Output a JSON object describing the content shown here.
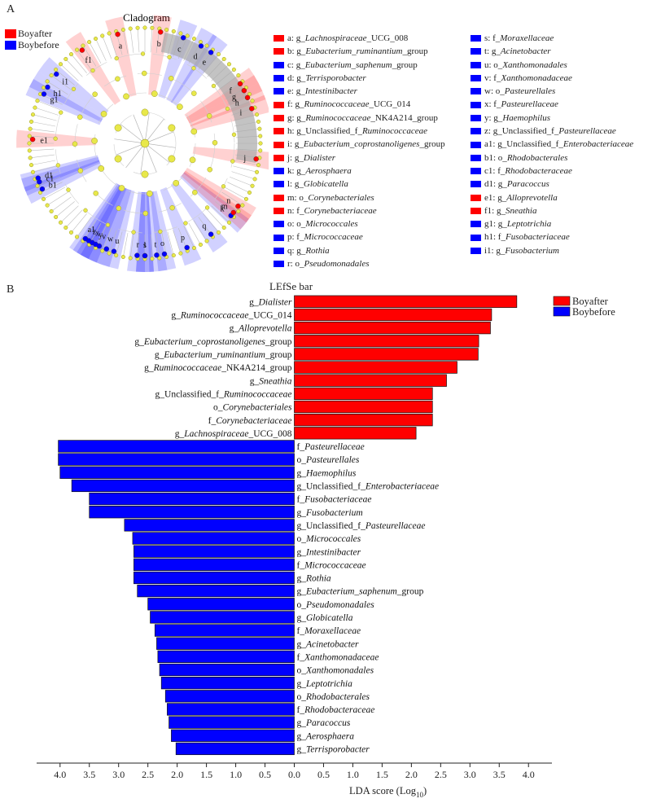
{
  "panel_a_label": "A",
  "panel_b_label": "B",
  "colors": {
    "boyafter": "#ff0000",
    "boybefore": "#0000ff",
    "node": "#e8e84a",
    "node_stroke": "#9a9a2a"
  },
  "cladogram": {
    "title": "Cladogram",
    "groups": [
      {
        "name": "Boyafter",
        "color": "#ff0000"
      },
      {
        "name": "Boybefore",
        "color": "#0000ff"
      }
    ],
    "outer_labels": [
      {
        "id": "a",
        "angle": 346,
        "group": "Boyafter"
      },
      {
        "id": "b",
        "angle": 8,
        "group": "Boyafter"
      },
      {
        "id": "c",
        "angle": 20,
        "group": "Boybefore"
      },
      {
        "id": "d",
        "angle": 30,
        "group": "Boybefore"
      },
      {
        "id": "e",
        "angle": 36,
        "group": "Boybefore"
      },
      {
        "id": "f",
        "angle": 58,
        "group": "Boyafter"
      },
      {
        "id": "g",
        "angle": 62,
        "group": "Boyafter"
      },
      {
        "id": "h",
        "angle": 66,
        "group": "Boyafter"
      },
      {
        "id": "i",
        "angle": 72,
        "group": "Boyafter"
      },
      {
        "id": "j",
        "angle": 98,
        "group": "Boyafter"
      },
      {
        "id": "k",
        "angle": 130,
        "group": "Boybefore"
      },
      {
        "id": "l",
        "angle": 180,
        "group": "Boybefore"
      },
      {
        "id": "m",
        "angle": 128,
        "group": "Boyafter"
      },
      {
        "id": "n",
        "angle": 124,
        "group": "Boyafter"
      },
      {
        "id": "o",
        "angle": 170,
        "group": "Boybefore"
      },
      {
        "id": "p",
        "angle": 158,
        "group": "Boybefore"
      },
      {
        "id": "q",
        "angle": 144,
        "group": "Boybefore"
      },
      {
        "id": "r",
        "angle": 184,
        "group": "Boybefore"
      },
      {
        "id": "s",
        "angle": 180,
        "group": "Boybefore"
      },
      {
        "id": "t",
        "angle": 174,
        "group": "Boybefore"
      },
      {
        "id": "u",
        "angle": 196,
        "group": "Boybefore"
      },
      {
        "id": "v",
        "angle": 204,
        "group": "Boybefore"
      },
      {
        "id": "w",
        "angle": 200,
        "group": "Boybefore"
      },
      {
        "id": "x",
        "angle": 208,
        "group": "Boybefore"
      },
      {
        "id": "y",
        "angle": 206,
        "group": "Boybefore"
      },
      {
        "id": "z",
        "angle": 210,
        "group": "Boybefore"
      },
      {
        "id": "a1",
        "angle": 212,
        "group": "Boybefore"
      },
      {
        "id": "b1",
        "angle": 246,
        "group": "Boybefore"
      },
      {
        "id": "c1",
        "angle": 250,
        "group": "Boybefore"
      },
      {
        "id": "d1",
        "angle": 252,
        "group": "Boybefore"
      },
      {
        "id": "e1",
        "angle": 272,
        "group": "Boyafter"
      },
      {
        "id": "f1",
        "angle": 326,
        "group": "Boyafter"
      },
      {
        "id": "g1",
        "angle": 296,
        "group": "Boybefore"
      },
      {
        "id": "h1",
        "angle": 300,
        "group": "Boybefore"
      },
      {
        "id": "i1",
        "angle": 308,
        "group": "Boybefore"
      }
    ],
    "key_col1": [
      {
        "prefix": "a: g_",
        "name": "Lachnospiraceae",
        "suffix": "_UCG_008",
        "group": "Boyafter"
      },
      {
        "prefix": "b: g_",
        "name": "Eubacterium_ruminantium",
        "suffix": "_group",
        "group": "Boyafter"
      },
      {
        "prefix": "c: g_",
        "name": "Eubacterium_saphenum",
        "suffix": "_group",
        "group": "Boybefore"
      },
      {
        "prefix": "d: g_",
        "name": "Terrisporobacter",
        "suffix": "",
        "group": "Boybefore"
      },
      {
        "prefix": "e: g_",
        "name": "Intestinibacter",
        "suffix": "",
        "group": "Boybefore"
      },
      {
        "prefix": "f: g_",
        "name": "Ruminococcaceae",
        "suffix": "_UCG_014",
        "group": "Boyafter"
      },
      {
        "prefix": "g: g_",
        "name": "Ruminococcaceae",
        "suffix": "_NK4A214_group",
        "group": "Boyafter"
      },
      {
        "prefix": "h: g_Unclassified_f_",
        "name": "Ruminococcaceae",
        "suffix": "",
        "group": "Boyafter"
      },
      {
        "prefix": "i: g_",
        "name": "Eubacterium_coprostanoligenes",
        "suffix": "_group",
        "group": "Boyafter"
      },
      {
        "prefix": "j: g_",
        "name": "Dialister",
        "suffix": "",
        "group": "Boyafter"
      },
      {
        "prefix": "k: g_",
        "name": "Aerosphaera",
        "suffix": "",
        "group": "Boybefore"
      },
      {
        "prefix": "l: g_",
        "name": "Globicatella",
        "suffix": "",
        "group": "Boybefore"
      },
      {
        "prefix": "m: o_",
        "name": "Corynebacteriales",
        "suffix": "",
        "group": "Boyafter"
      },
      {
        "prefix": "n: f_",
        "name": "Corynebacteriaceae",
        "suffix": "",
        "group": "Boyafter"
      },
      {
        "prefix": "o: o_",
        "name": "Micrococcales",
        "suffix": "",
        "group": "Boybefore"
      },
      {
        "prefix": "p: f_",
        "name": "Micrococcaceae",
        "suffix": "",
        "group": "Boybefore"
      },
      {
        "prefix": "q: g_",
        "name": "Rothia",
        "suffix": "",
        "group": "Boybefore"
      },
      {
        "prefix": "r: o_",
        "name": "Pseudomonadales",
        "suffix": "",
        "group": "Boybefore"
      }
    ],
    "key_col2": [
      {
        "prefix": "s: f_",
        "name": "Moraxellaceae",
        "suffix": "",
        "group": "Boybefore"
      },
      {
        "prefix": "t: g_",
        "name": "Acinetobacter",
        "suffix": "",
        "group": "Boybefore"
      },
      {
        "prefix": "u: o_",
        "name": "Xanthomonadales",
        "suffix": "",
        "group": "Boybefore"
      },
      {
        "prefix": "v: f_",
        "name": "Xanthomonadaceae",
        "suffix": "",
        "group": "Boybefore"
      },
      {
        "prefix": "w: o_",
        "name": "Pasteurellales",
        "suffix": "",
        "group": "Boybefore"
      },
      {
        "prefix": "x: f_",
        "name": "Pasteurellaceae",
        "suffix": "",
        "group": "Boybefore"
      },
      {
        "prefix": "y: g_",
        "name": "Haemophilus",
        "suffix": "",
        "group": "Boybefore"
      },
      {
        "prefix": "z: g_Unclassified_f_",
        "name": "Pasteurellaceae",
        "suffix": "",
        "group": "Boybefore"
      },
      {
        "prefix": "a1: g_Unclassified_f_",
        "name": "Enterobacteriaceae",
        "suffix": "",
        "group": "Boybefore"
      },
      {
        "prefix": "b1: o_",
        "name": "Rhodobacterales",
        "suffix": "",
        "group": "Boybefore"
      },
      {
        "prefix": "c1: f_",
        "name": "Rhodobacteraceae",
        "suffix": "",
        "group": "Boybefore"
      },
      {
        "prefix": "d1: g_",
        "name": "Paracoccus",
        "suffix": "",
        "group": "Boybefore"
      },
      {
        "prefix": "e1: g_",
        "name": "Alloprevotella",
        "suffix": "",
        "group": "Boyafter"
      },
      {
        "prefix": "f1: g_",
        "name": "Sneathia",
        "suffix": "",
        "group": "Boyafter"
      },
      {
        "prefix": "g1: g_",
        "name": "Leptotrichia",
        "suffix": "",
        "group": "Boybefore"
      },
      {
        "prefix": "h1: f_",
        "name": "Fusobacteriaceae",
        "suffix": "",
        "group": "Boybefore"
      },
      {
        "prefix": "i1: g_",
        "name": "Fusobacterium",
        "suffix": "",
        "group": "Boybefore"
      }
    ]
  },
  "chart_data": {
    "type": "bar",
    "orientation": "horizontal",
    "title": "LEfSe bar",
    "xlabel": "LDA score (Log",
    "xlabel_sub": "10",
    "xlabel_close": ")",
    "xlim": [
      -4.4,
      4.4
    ],
    "xticks": [
      -4.0,
      -3.5,
      -3.0,
      -2.5,
      -2.0,
      -1.5,
      -1.0,
      -0.5,
      0.0,
      0.5,
      1.0,
      1.5,
      2.0,
      2.5,
      3.0,
      3.5,
      4.0
    ],
    "xtick_labels": [
      "4.0",
      "3.5",
      "3.0",
      "2.5",
      "2.0",
      "1.5",
      "1.0",
      "0.5",
      "0.0",
      "0.5",
      "1.0",
      "1.5",
      "2.0",
      "2.5",
      "3.0",
      "3.5",
      "4.0"
    ],
    "legend_position": "top-right",
    "series": [
      {
        "name": "Boyafter",
        "color": "#ff0000"
      },
      {
        "name": "Boybefore",
        "color": "#0000ff"
      }
    ],
    "bars": [
      {
        "prefix": "g_",
        "name": "Dialister",
        "suffix": "",
        "value": 3.8,
        "group": "Boyafter"
      },
      {
        "prefix": "g_",
        "name": "Ruminococcaceae",
        "suffix": "_UCG_014",
        "value": 3.37,
        "group": "Boyafter"
      },
      {
        "prefix": "g_",
        "name": "Alloprevotella",
        "suffix": "",
        "value": 3.35,
        "group": "Boyafter"
      },
      {
        "prefix": "g_",
        "name": "Eubacterium_coprostanoligenes",
        "suffix": "_group",
        "value": 3.15,
        "group": "Boyafter"
      },
      {
        "prefix": "g_",
        "name": "Eubacterium_ruminantium",
        "suffix": "_group",
        "value": 3.14,
        "group": "Boyafter"
      },
      {
        "prefix": "g_",
        "name": "Ruminococcaceae",
        "suffix": "_NK4A214_group",
        "value": 2.78,
        "group": "Boyafter"
      },
      {
        "prefix": "g_",
        "name": "Sneathia",
        "suffix": "",
        "value": 2.6,
        "group": "Boyafter"
      },
      {
        "prefix": "g_Unclassified_f_",
        "name": "Ruminococcaceae",
        "suffix": "",
        "value": 2.36,
        "group": "Boyafter"
      },
      {
        "prefix": "o_",
        "name": "Corynebacteriales",
        "suffix": "",
        "value": 2.36,
        "group": "Boyafter"
      },
      {
        "prefix": "f_",
        "name": "Corynebacteriaceae",
        "suffix": "",
        "value": 2.36,
        "group": "Boyafter"
      },
      {
        "prefix": "g_",
        "name": "Lachnospiraceae",
        "suffix": "_UCG_008",
        "value": 2.08,
        "group": "Boyafter"
      },
      {
        "prefix": "f_",
        "name": "Pasteurellaceae",
        "suffix": "",
        "value": -4.03,
        "group": "Boybefore"
      },
      {
        "prefix": "o_",
        "name": "Pasteurellales",
        "suffix": "",
        "value": -4.03,
        "group": "Boybefore"
      },
      {
        "prefix": "g_",
        "name": "Haemophilus",
        "suffix": "",
        "value": -4.0,
        "group": "Boybefore"
      },
      {
        "prefix": "g_Unclassified_f_",
        "name": "Enterobacteriaceae",
        "suffix": "",
        "value": -3.8,
        "group": "Boybefore"
      },
      {
        "prefix": "f_",
        "name": "Fusobacteriaceae",
        "suffix": "",
        "value": -3.5,
        "group": "Boybefore"
      },
      {
        "prefix": "g_",
        "name": "Fusobacterium",
        "suffix": "",
        "value": -3.5,
        "group": "Boybefore"
      },
      {
        "prefix": "g_Unclassified_f_",
        "name": "Pasteurellaceae",
        "suffix": "",
        "value": -2.9,
        "group": "Boybefore"
      },
      {
        "prefix": "o_",
        "name": "Micrococcales",
        "suffix": "",
        "value": -2.76,
        "group": "Boybefore"
      },
      {
        "prefix": "g_",
        "name": "Intestinibacter",
        "suffix": "",
        "value": -2.74,
        "group": "Boybefore"
      },
      {
        "prefix": "f_",
        "name": "Micrococcaceae",
        "suffix": "",
        "value": -2.74,
        "group": "Boybefore"
      },
      {
        "prefix": "g_",
        "name": "Rothia",
        "suffix": "",
        "value": -2.74,
        "group": "Boybefore"
      },
      {
        "prefix": "g_",
        "name": "Eubacterium_saphenum",
        "suffix": "_group",
        "value": -2.68,
        "group": "Boybefore"
      },
      {
        "prefix": "o_",
        "name": "Pseudomonadales",
        "suffix": "",
        "value": -2.5,
        "group": "Boybefore"
      },
      {
        "prefix": "g_",
        "name": "Globicatella",
        "suffix": "",
        "value": -2.46,
        "group": "Boybefore"
      },
      {
        "prefix": "f_",
        "name": "Moraxellaceae",
        "suffix": "",
        "value": -2.38,
        "group": "Boybefore"
      },
      {
        "prefix": "g_",
        "name": "Acinetobacter",
        "suffix": "",
        "value": -2.35,
        "group": "Boybefore"
      },
      {
        "prefix": "f_",
        "name": "Xanthomonadaceae",
        "suffix": "",
        "value": -2.33,
        "group": "Boybefore"
      },
      {
        "prefix": "o_",
        "name": "Xanthomonadales",
        "suffix": "",
        "value": -2.3,
        "group": "Boybefore"
      },
      {
        "prefix": "g_",
        "name": "Leptotrichia",
        "suffix": "",
        "value": -2.27,
        "group": "Boybefore"
      },
      {
        "prefix": "o_",
        "name": "Rhodobacterales",
        "suffix": "",
        "value": -2.2,
        "group": "Boybefore"
      },
      {
        "prefix": "f_",
        "name": "Rhodobacteraceae",
        "suffix": "",
        "value": -2.17,
        "group": "Boybefore"
      },
      {
        "prefix": "g_",
        "name": "Paracoccus",
        "suffix": "",
        "value": -2.14,
        "group": "Boybefore"
      },
      {
        "prefix": "g_",
        "name": "Aerosphaera",
        "suffix": "",
        "value": -2.1,
        "group": "Boybefore"
      },
      {
        "prefix": "g_",
        "name": "Terrisporobacter",
        "suffix": "",
        "value": -2.02,
        "group": "Boybefore"
      }
    ]
  }
}
